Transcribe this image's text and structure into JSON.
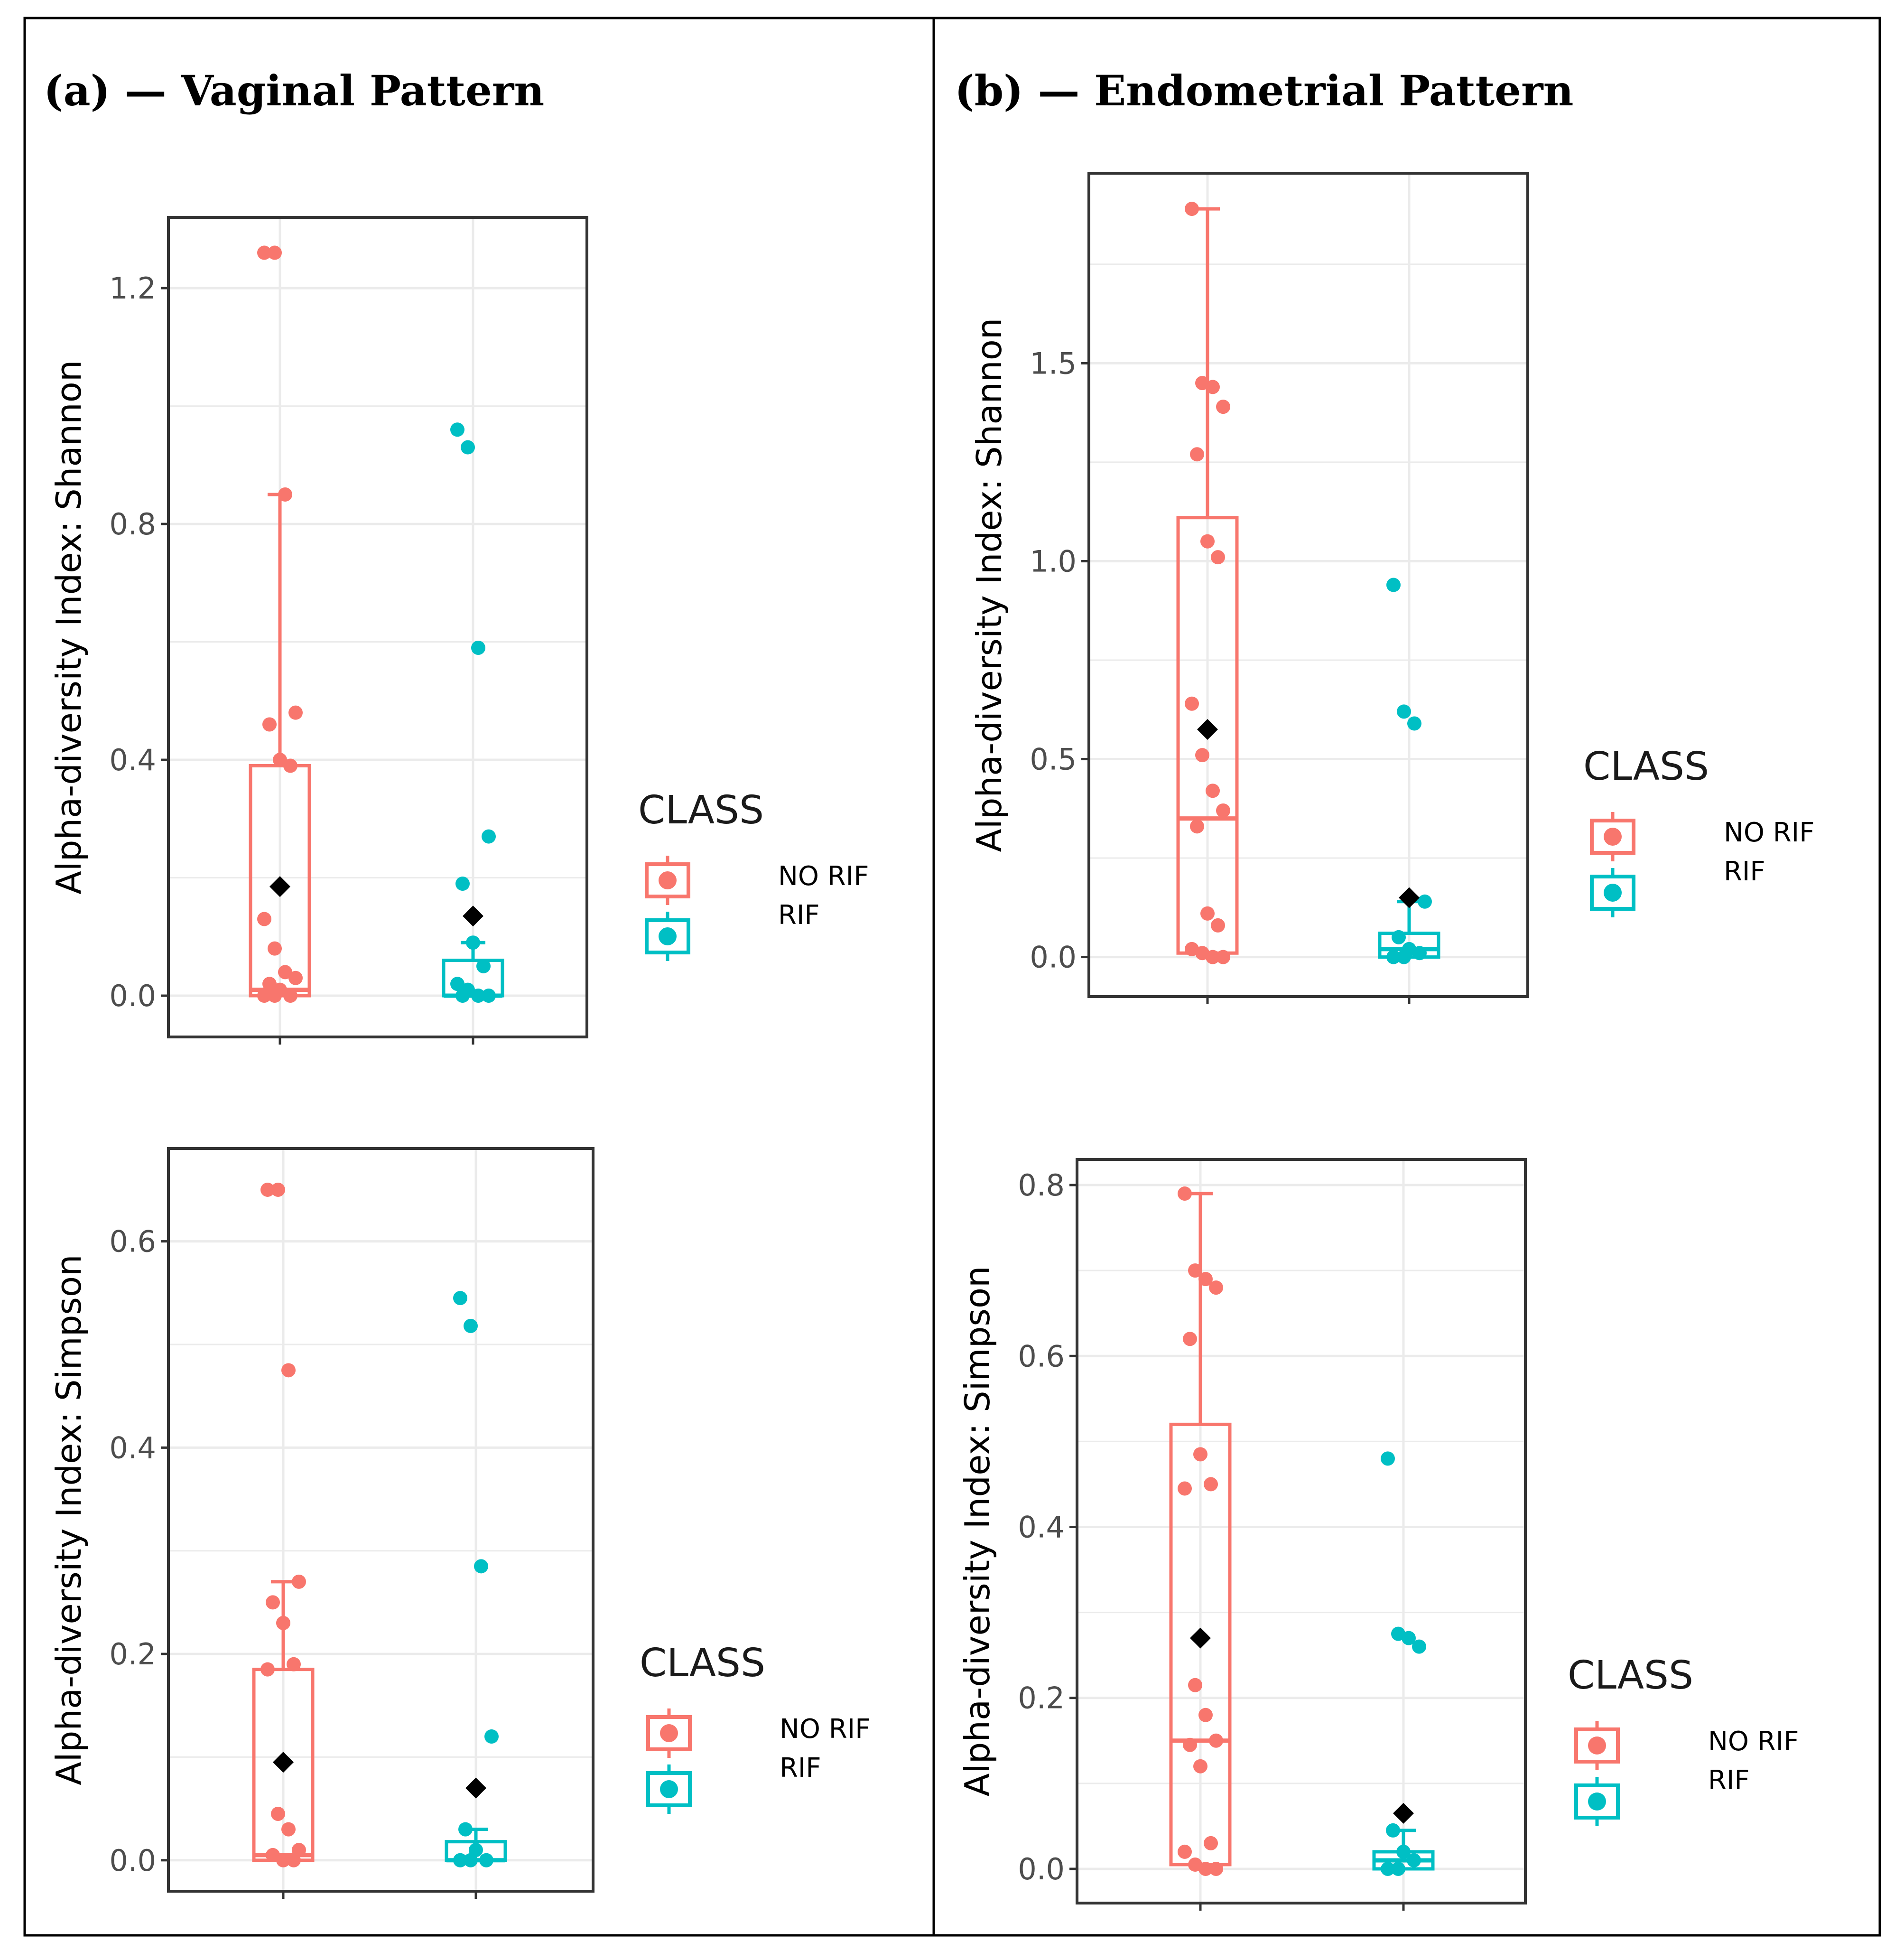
{
  "figure": {
    "panel_a_title": "(a) — Vaginal Pattern",
    "panel_b_title": "(b) — Endometrial Pattern"
  },
  "colors": {
    "no_rif": "#F8766D",
    "rif": "#00BFC4",
    "mean_marker": "#000000",
    "grid": "#EBEBEB",
    "frame": "#333333"
  },
  "chart_data": [
    {
      "id": "a-shannon",
      "type": "box",
      "panel": "(a) — Vaginal Pattern",
      "ylabel": "Alpha-diversity Index: Shannon",
      "ylim": [
        -0.07,
        1.32
      ],
      "yticks": [
        0.0,
        0.4,
        0.8,
        1.2
      ],
      "ytick_labels": [
        "0.0",
        "0.4",
        "0.8",
        "1.2"
      ],
      "legend_title": "CLASS",
      "legend_entries": [
        "NO RIF",
        "RIF"
      ],
      "groups": [
        {
          "name": "NO RIF",
          "q1": 0.0,
          "median": 0.01,
          "q3": 0.39,
          "whisker_low": 0.0,
          "whisker_high": 0.85,
          "mean": 0.185,
          "points": [
            1.26,
            1.26,
            0.85,
            0.48,
            0.46,
            0.4,
            0.39,
            0.13,
            0.08,
            0.04,
            0.03,
            0.02,
            0.01,
            0.0,
            0.0,
            0.0
          ]
        },
        {
          "name": "RIF",
          "q1": 0.0,
          "median": 0.0,
          "q3": 0.06,
          "whisker_low": 0.0,
          "whisker_high": 0.09,
          "mean": 0.135,
          "points": [
            0.96,
            0.93,
            0.59,
            0.27,
            0.19,
            0.09,
            0.05,
            0.02,
            0.01,
            0.0,
            0.0,
            0.0
          ]
        }
      ]
    },
    {
      "id": "a-simpson",
      "type": "box",
      "panel": "(a) — Vaginal Pattern",
      "ylabel": "Alpha-diversity Index: Simpson",
      "ylim": [
        -0.03,
        0.69
      ],
      "yticks": [
        0.0,
        0.2,
        0.4,
        0.6
      ],
      "ytick_labels": [
        "0.0",
        "0.2",
        "0.4",
        "0.6"
      ],
      "legend_title": "CLASS",
      "legend_entries": [
        "NO RIF",
        "RIF"
      ],
      "groups": [
        {
          "name": "NO RIF",
          "q1": 0.0,
          "median": 0.005,
          "q3": 0.185,
          "whisker_low": 0.0,
          "whisker_high": 0.27,
          "mean": 0.095,
          "points": [
            0.65,
            0.65,
            0.475,
            0.27,
            0.25,
            0.23,
            0.19,
            0.185,
            0.045,
            0.03,
            0.01,
            0.005,
            0.0,
            0.0
          ]
        },
        {
          "name": "RIF",
          "q1": 0.0,
          "median": 0.0,
          "q3": 0.018,
          "whisker_low": 0.0,
          "whisker_high": 0.03,
          "mean": 0.07,
          "points": [
            0.545,
            0.518,
            0.285,
            0.12,
            0.03,
            0.01,
            0.0,
            0.0,
            0.0
          ]
        }
      ]
    },
    {
      "id": "b-shannon",
      "type": "box",
      "panel": "(b) — Endometrial Pattern",
      "ylabel": "Alpha-diversity Index: Shannon",
      "ylim": [
        -0.1,
        1.98
      ],
      "yticks": [
        0.0,
        0.5,
        1.0,
        1.5
      ],
      "ytick_labels": [
        "0.0",
        "0.5",
        "1.0",
        "1.5"
      ],
      "legend_title": "CLASS",
      "legend_entries": [
        "NO RIF",
        "RIF"
      ],
      "groups": [
        {
          "name": "NO RIF",
          "q1": 0.01,
          "median": 0.35,
          "q3": 1.11,
          "whisker_low": 0.0,
          "whisker_high": 1.89,
          "mean": 0.575,
          "points": [
            1.89,
            1.45,
            1.44,
            1.39,
            1.27,
            1.05,
            1.01,
            0.64,
            0.51,
            0.42,
            0.37,
            0.33,
            0.11,
            0.08,
            0.02,
            0.01,
            0.0,
            0.0
          ]
        },
        {
          "name": "RIF",
          "q1": 0.0,
          "median": 0.02,
          "q3": 0.06,
          "whisker_low": 0.0,
          "whisker_high": 0.14,
          "mean": 0.15,
          "points": [
            0.94,
            0.62,
            0.59,
            0.14,
            0.05,
            0.02,
            0.01,
            0.0,
            0.0
          ]
        }
      ]
    },
    {
      "id": "b-simpson",
      "type": "box",
      "panel": "(b) — Endometrial Pattern",
      "ylabel": "Alpha-diversity Index: Simpson",
      "ylim": [
        -0.04,
        0.83
      ],
      "yticks": [
        0.0,
        0.2,
        0.4,
        0.6,
        0.8
      ],
      "ytick_labels": [
        "0.0",
        "0.2",
        "0.4",
        "0.6",
        "0.8"
      ],
      "legend_title": "CLASS",
      "legend_entries": [
        "NO RIF",
        "RIF"
      ],
      "groups": [
        {
          "name": "NO RIF",
          "q1": 0.005,
          "median": 0.15,
          "q3": 0.52,
          "whisker_low": 0.0,
          "whisker_high": 0.79,
          "mean": 0.27,
          "points": [
            0.79,
            0.7,
            0.69,
            0.68,
            0.62,
            0.485,
            0.45,
            0.445,
            0.215,
            0.18,
            0.15,
            0.145,
            0.12,
            0.03,
            0.02,
            0.005,
            0.0,
            0.0
          ]
        },
        {
          "name": "RIF",
          "q1": 0.0,
          "median": 0.01,
          "q3": 0.02,
          "whisker_low": 0.0,
          "whisker_high": 0.045,
          "mean": 0.065,
          "points": [
            0.48,
            0.275,
            0.27,
            0.26,
            0.045,
            0.02,
            0.01,
            0.0,
            0.0
          ]
        }
      ]
    }
  ]
}
